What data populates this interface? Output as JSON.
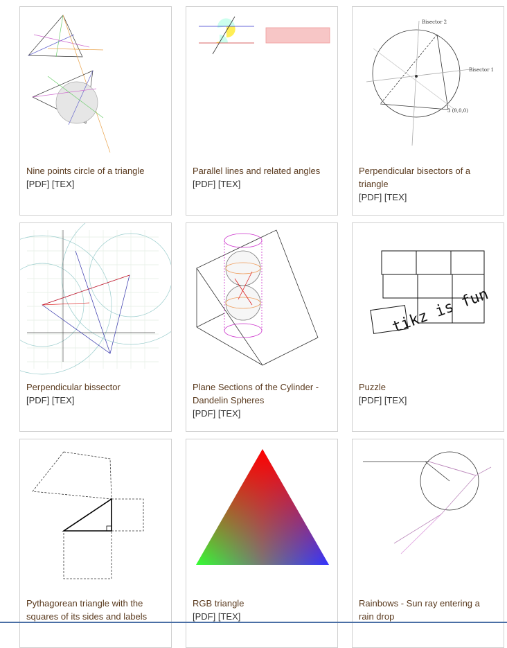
{
  "cards": [
    {
      "title": "Nine points circle of a triangle",
      "links": [
        "[PDF]",
        "[TEX]"
      ]
    },
    {
      "title": "Parallel lines and related angles",
      "links": [
        "[PDF]",
        "[TEX]"
      ]
    },
    {
      "title": "Perpendicular bisectors of a triangle",
      "links": [
        "[PDF]",
        "[TEX]"
      ],
      "figure_labels": [
        "Bisector 2",
        "Bisector 1",
        "3 (0,0,0)"
      ]
    },
    {
      "title": "Perpendicular bissector",
      "links": [
        "[PDF]",
        "[TEX]"
      ]
    },
    {
      "title": "Plane Sections of the Cylinder - Dandelin Spheres",
      "links": [
        "[PDF]",
        "[TEX]"
      ]
    },
    {
      "title": "Puzzle",
      "links": [
        "[PDF]",
        "[TEX]"
      ],
      "figure_labels": [
        "tikz is fun"
      ]
    },
    {
      "title": "Pythagorean triangle with the squares of its sides and labels"
    },
    {
      "title": "RGB triangle",
      "links": [
        "[PDF]",
        "[TEX]"
      ]
    },
    {
      "title": "Rainbows - Sun ray entering a rain drop"
    }
  ]
}
